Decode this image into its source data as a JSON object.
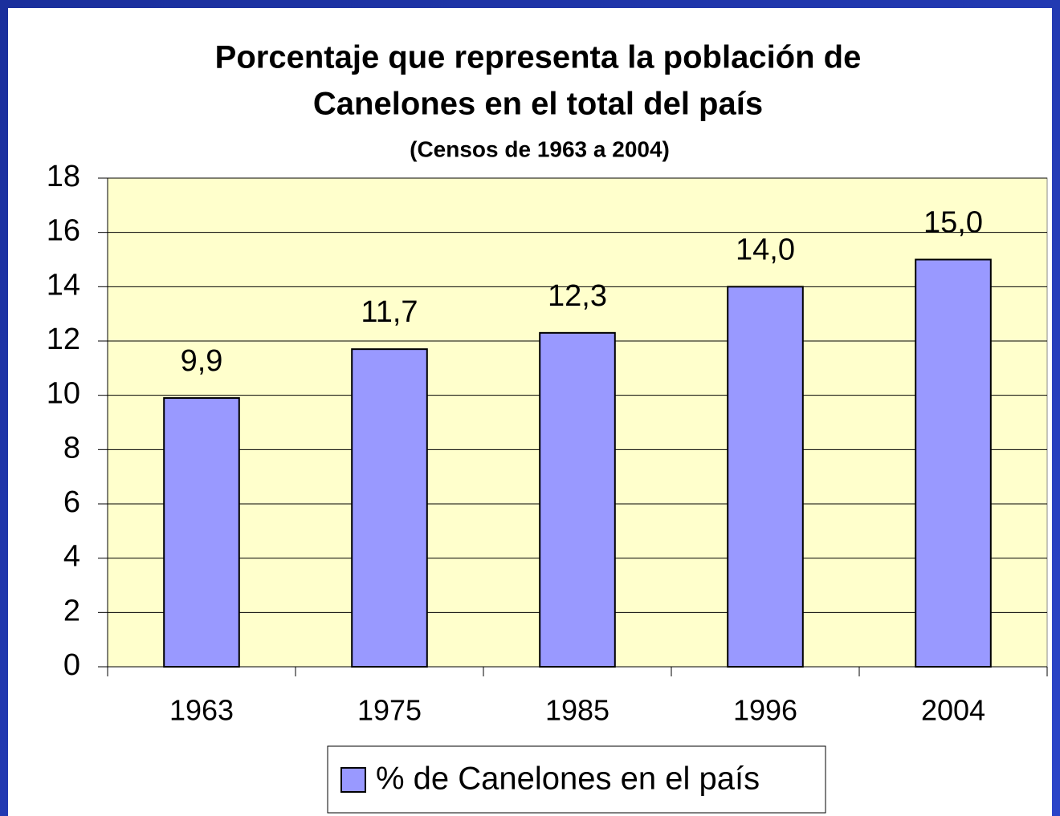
{
  "chart_data": {
    "type": "bar",
    "title": [
      "Porcentaje que representa la población de",
      "Canelones en el total del país"
    ],
    "subtitle": "(Censos de 1963 a 2004)",
    "categories": [
      "1963",
      "1975",
      "1985",
      "1996",
      "2004"
    ],
    "series": [
      {
        "name": "% de Canelones en el país",
        "color": "#9999ff",
        "values": [
          9.9,
          11.7,
          12.3,
          14.0,
          15.0
        ],
        "value_labels": [
          "9,9",
          "11,7",
          "12,3",
          "14,0",
          "15,0"
        ]
      }
    ],
    "ylim": [
      0,
      18
    ],
    "yticks": [
      0,
      2,
      4,
      6,
      8,
      10,
      12,
      14,
      16,
      18
    ],
    "grid": true,
    "legend": "bottom",
    "plot_background": "#ffffcc"
  }
}
